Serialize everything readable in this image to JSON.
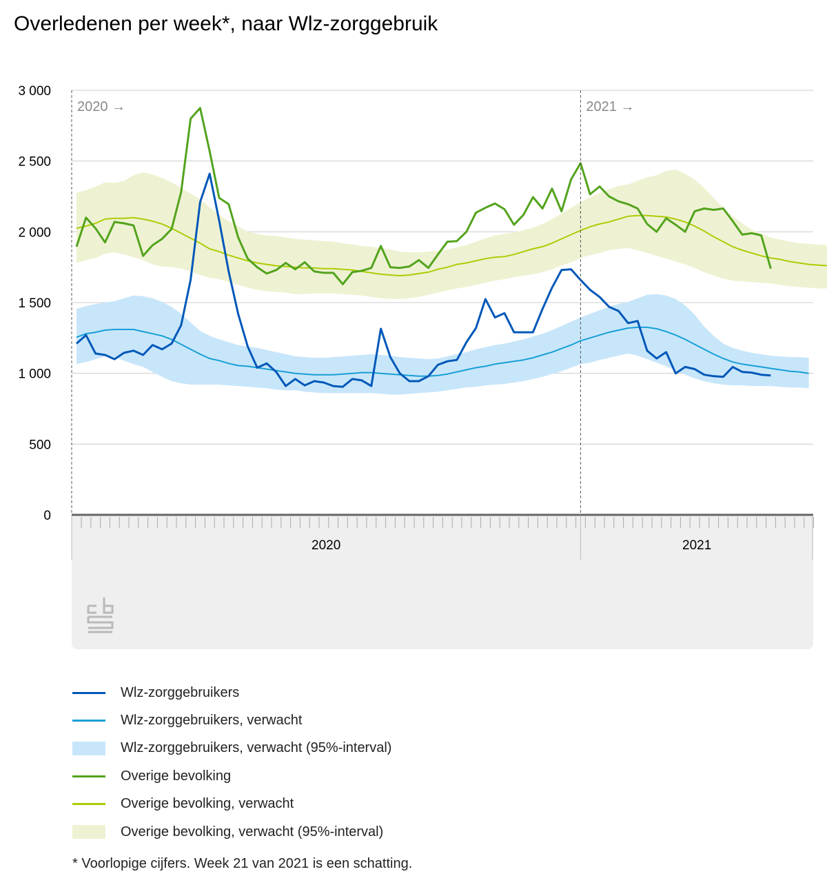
{
  "title": "Overledenen per week*, naar Wlz-zorggebruik",
  "footnote": "* Voorlopige cijfers. Week 21 van 2021 is een schatting.",
  "colors": {
    "wlz": "#0058b8",
    "wlz_expected": "#169fd6",
    "wlz_band": "#c8e6fa",
    "overig": "#53a31d",
    "overig_expected": "#afcb05",
    "overig_band": "#eef2d2",
    "grid": "#cccccc",
    "axis": "#666666",
    "xpanel": "#efefef"
  },
  "legend": [
    {
      "label": "Wlz-zorggebruikers",
      "type": "line",
      "color": "#0058b8"
    },
    {
      "label": "Wlz-zorggebruikers, verwacht",
      "type": "line",
      "color": "#169fd6"
    },
    {
      "label": "Wlz-zorggebruikers, verwacht (95%-interval)",
      "type": "band",
      "color": "#c8e6fa"
    },
    {
      "label": "Overige bevolking",
      "type": "line",
      "color": "#53a31d"
    },
    {
      "label": "Overige bevolking, verwacht",
      "type": "line",
      "color": "#afcb05"
    },
    {
      "label": "Overige bevolking, verwacht (95%-interval)",
      "type": "band",
      "color": "#eef2d2"
    }
  ],
  "chart_data": {
    "type": "line",
    "title": "Overledenen per week*, naar Wlz-zorggebruik",
    "x_unit": "week",
    "x_start": "2020 week 1",
    "year_groups": [
      {
        "label": "2020",
        "weeks": 53
      },
      {
        "label": "2021",
        "weeks": 25
      }
    ],
    "year_markers": [
      "2020 →",
      "2021 →"
    ],
    "yticks": [
      0,
      500,
      1000,
      1500,
      2000,
      2500,
      3000
    ],
    "ytick_labels": [
      "0",
      "500",
      "1 000",
      "1 500",
      "2 000",
      "2 500",
      "3 000"
    ],
    "ylim": [
      0,
      3000
    ],
    "grid": true,
    "series": [
      {
        "name": "Wlz-zorggebruikers",
        "kind": "line",
        "values": [
          1210,
          1270,
          1140,
          1130,
          1100,
          1145,
          1160,
          1130,
          1200,
          1170,
          1210,
          1340,
          1660,
          2210,
          2410,
          2080,
          1720,
          1420,
          1190,
          1040,
          1070,
          1010,
          910,
          960,
          915,
          945,
          935,
          910,
          905,
          960,
          950,
          910,
          1315,
          1115,
          1000,
          945,
          945,
          980,
          1060,
          1085,
          1095,
          1220,
          1320,
          1525,
          1395,
          1425,
          1290,
          1290,
          1290,
          1455,
          1605,
          1730,
          1735,
          1660,
          1590,
          1540,
          1470,
          1440,
          1355,
          1370,
          1160,
          1105,
          1150,
          1000,
          1045,
          1030,
          990,
          980,
          975,
          1045,
          1010,
          1005,
          990,
          985
        ]
      },
      {
        "name": "Wlz-zorggebruikers, verwacht",
        "kind": "line",
        "values": [
          1255,
          1280,
          1290,
          1305,
          1310,
          1310,
          1310,
          1295,
          1280,
          1265,
          1240,
          1205,
          1170,
          1135,
          1105,
          1090,
          1070,
          1055,
          1050,
          1040,
          1030,
          1020,
          1010,
          1000,
          995,
          990,
          990,
          990,
          995,
          1000,
          1005,
          1005,
          1000,
          995,
          990,
          985,
          980,
          980,
          985,
          995,
          1010,
          1025,
          1040,
          1050,
          1065,
          1075,
          1085,
          1095,
          1110,
          1130,
          1150,
          1175,
          1200,
          1230,
          1250,
          1270,
          1290,
          1305,
          1320,
          1325,
          1325,
          1315,
          1295,
          1270,
          1240,
          1205,
          1170,
          1135,
          1105,
          1080,
          1065,
          1055,
          1045,
          1035,
          1025,
          1015,
          1010,
          1000
        ]
      },
      {
        "name": "Wlz-zorggebruikers, verwacht (95%-interval)",
        "kind": "band",
        "lower": [
          1065,
          1080,
          1100,
          1120,
          1115,
          1090,
          1065,
          1045,
          1010,
          975,
          945,
          930,
          920,
          920,
          920,
          920,
          915,
          910,
          905,
          900,
          895,
          885,
          880,
          880,
          870,
          865,
          860,
          860,
          860,
          860,
          860,
          860,
          855,
          850,
          850,
          855,
          860,
          865,
          870,
          880,
          890,
          900,
          905,
          915,
          920,
          925,
          935,
          945,
          960,
          975,
          995,
          1015,
          1040,
          1065,
          1075,
          1095,
          1110,
          1125,
          1140,
          1125,
          1100,
          1075,
          1050,
          1020,
          990,
          965,
          945,
          930,
          920,
          915,
          915,
          910,
          910,
          910,
          905,
          900,
          900,
          895
        ],
        "upper": [
          1455,
          1475,
          1490,
          1500,
          1510,
          1530,
          1550,
          1545,
          1530,
          1505,
          1470,
          1420,
          1360,
          1300,
          1265,
          1240,
          1220,
          1200,
          1190,
          1180,
          1165,
          1150,
          1135,
          1120,
          1115,
          1110,
          1110,
          1115,
          1120,
          1125,
          1130,
          1135,
          1130,
          1125,
          1115,
          1110,
          1105,
          1100,
          1105,
          1120,
          1135,
          1150,
          1170,
          1185,
          1200,
          1210,
          1225,
          1240,
          1260,
          1280,
          1305,
          1335,
          1365,
          1395,
          1420,
          1445,
          1470,
          1490,
          1505,
          1530,
          1555,
          1560,
          1550,
          1525,
          1480,
          1415,
          1330,
          1265,
          1210,
          1180,
          1160,
          1145,
          1135,
          1125,
          1120,
          1115,
          1115,
          1110
        ]
      },
      {
        "name": "Overige bevolking",
        "kind": "line",
        "values": [
          1895,
          2100,
          2025,
          1925,
          2070,
          2060,
          2045,
          1830,
          1905,
          1950,
          2020,
          2280,
          2800,
          2875,
          2570,
          2240,
          2195,
          1960,
          1810,
          1750,
          1705,
          1730,
          1780,
          1735,
          1785,
          1720,
          1710,
          1710,
          1630,
          1715,
          1725,
          1745,
          1900,
          1750,
          1745,
          1755,
          1800,
          1745,
          1840,
          1930,
          1935,
          2000,
          2135,
          2170,
          2200,
          2160,
          2050,
          2120,
          2245,
          2165,
          2305,
          2145,
          2370,
          2485,
          2265,
          2320,
          2250,
          2215,
          2195,
          2165,
          2055,
          2000,
          2095,
          2050,
          2000,
          2145,
          2165,
          2155,
          2165,
          2075,
          1980,
          1990,
          1975,
          1740
        ]
      },
      {
        "name": "Overige bevolking, verwacht",
        "kind": "line",
        "values": [
          2025,
          2040,
          2060,
          2090,
          2095,
          2095,
          2100,
          2090,
          2075,
          2055,
          2025,
          1990,
          1955,
          1920,
          1880,
          1860,
          1835,
          1815,
          1795,
          1780,
          1770,
          1760,
          1755,
          1750,
          1745,
          1745,
          1740,
          1740,
          1735,
          1730,
          1720,
          1710,
          1700,
          1695,
          1690,
          1695,
          1705,
          1715,
          1735,
          1750,
          1770,
          1780,
          1795,
          1810,
          1820,
          1825,
          1840,
          1860,
          1880,
          1895,
          1920,
          1950,
          1980,
          2010,
          2035,
          2055,
          2070,
          2090,
          2110,
          2115,
          2115,
          2110,
          2105,
          2090,
          2070,
          2040,
          2005,
          1965,
          1930,
          1895,
          1870,
          1850,
          1830,
          1815,
          1805,
          1790,
          1780,
          1770,
          1765,
          1760,
          1760,
          1755
        ]
      },
      {
        "name": "Overige bevolking, verwacht (95%-interval)",
        "kind": "band",
        "lower": [
          1780,
          1800,
          1815,
          1845,
          1855,
          1840,
          1820,
          1800,
          1770,
          1755,
          1750,
          1740,
          1720,
          1695,
          1675,
          1665,
          1645,
          1625,
          1605,
          1590,
          1580,
          1575,
          1570,
          1560,
          1560,
          1565,
          1565,
          1565,
          1560,
          1555,
          1550,
          1540,
          1530,
          1525,
          1525,
          1530,
          1540,
          1555,
          1570,
          1585,
          1600,
          1610,
          1625,
          1640,
          1655,
          1665,
          1680,
          1690,
          1700,
          1715,
          1735,
          1760,
          1785,
          1815,
          1835,
          1850,
          1870,
          1880,
          1885,
          1870,
          1850,
          1830,
          1810,
          1790,
          1770,
          1745,
          1715,
          1690,
          1670,
          1655,
          1650,
          1645,
          1640,
          1635,
          1625,
          1615,
          1610,
          1605,
          1600,
          1600,
          1600,
          1600
        ],
        "upper": [
          2275,
          2295,
          2320,
          2350,
          2345,
          2360,
          2400,
          2420,
          2405,
          2380,
          2350,
          2310,
          2270,
          2230,
          2175,
          2120,
          2075,
          2040,
          2000,
          1985,
          1975,
          1970,
          1960,
          1950,
          1945,
          1940,
          1935,
          1930,
          1920,
          1910,
          1900,
          1895,
          1885,
          1875,
          1860,
          1855,
          1855,
          1860,
          1865,
          1875,
          1890,
          1905,
          1930,
          1955,
          1975,
          1985,
          1995,
          2010,
          2030,
          2055,
          2090,
          2130,
          2170,
          2210,
          2245,
          2275,
          2300,
          2325,
          2335,
          2360,
          2385,
          2400,
          2430,
          2440,
          2410,
          2370,
          2310,
          2240,
          2170,
          2110,
          2060,
          2015,
          1985,
          1960,
          1945,
          1930,
          1920,
          1915,
          1910,
          1905,
          1905,
          1905
        ]
      }
    ]
  }
}
